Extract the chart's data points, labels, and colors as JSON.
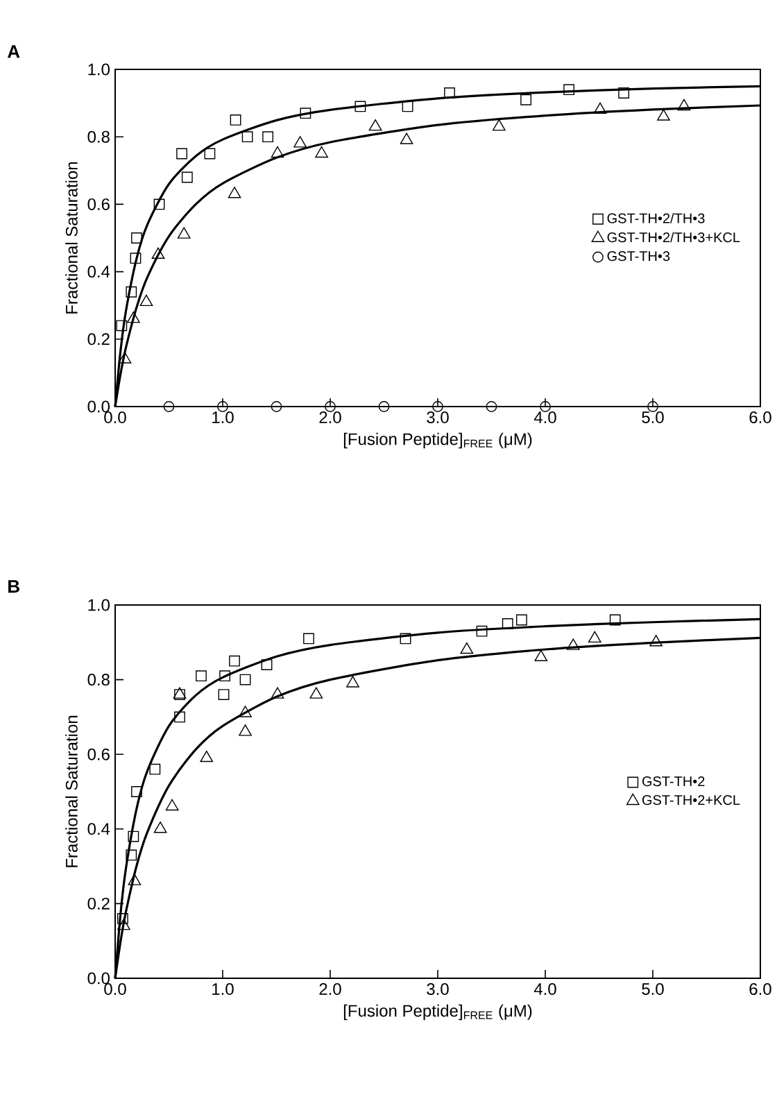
{
  "chart_data": [
    {
      "type": "scatter",
      "annotations": [
        "A"
      ],
      "xlabel": "[Fusion Peptide]$_{FREE}$ (μM)",
      "ylabel": "Fractional Saturation",
      "xlim": [
        0,
        6
      ],
      "ylim": [
        0,
        1
      ],
      "xticks": [
        {
          "value": 0,
          "label": "0.0"
        },
        {
          "value": 1,
          "label": "1.0"
        },
        {
          "value": 2,
          "label": "2.0"
        },
        {
          "value": 3,
          "label": "3.0"
        },
        {
          "value": 4,
          "label": "4.0"
        },
        {
          "value": 5,
          "label": "5.0"
        },
        {
          "value": 6,
          "label": "6.0"
        }
      ],
      "yticks": [
        {
          "value": 0,
          "label": "0.0"
        },
        {
          "value": 0.2,
          "label": "0.2"
        },
        {
          "value": 0.4,
          "label": "0.4"
        },
        {
          "value": 0.6,
          "label": "0.6"
        },
        {
          "value": 0.8,
          "label": "0.8"
        },
        {
          "value": 1,
          "label": "1.0"
        }
      ],
      "legend": "right",
      "series": [
        {
          "name": "GST-TH•2/TH•3",
          "marker": "square",
          "color": "#000000",
          "x": [
            0.06,
            0.15,
            0.19,
            0.2,
            0.41,
            0.67,
            0.62,
            0.88,
            1.12,
            1.23,
            1.42,
            1.77,
            2.28,
            2.72,
            3.11,
            3.82,
            4.22,
            4.73
          ],
          "values": [
            0.24,
            0.34,
            0.44,
            0.5,
            0.6,
            0.68,
            0.75,
            0.75,
            0.85,
            0.8,
            0.8,
            0.87,
            0.89,
            0.89,
            0.93,
            0.91,
            0.94,
            0.93
          ]
        },
        {
          "name": "GST-TH•2/TH•3+KCL",
          "marker": "triangle",
          "color": "#000000",
          "x": [
            0.09,
            0.17,
            0.29,
            0.4,
            0.64,
            1.11,
            1.51,
            1.72,
            1.92,
            2.42,
            2.71,
            3.57,
            4.51,
            5.1,
            5.29
          ],
          "values": [
            0.14,
            0.26,
            0.31,
            0.45,
            0.51,
            0.63,
            0.75,
            0.78,
            0.75,
            0.83,
            0.79,
            0.83,
            0.88,
            0.86,
            0.89
          ]
        },
        {
          "name": "GST-TH•3",
          "marker": "circle",
          "color": "#000000",
          "x": [
            0.5,
            1.0,
            1.5,
            2.0,
            2.5,
            3.0,
            3.5,
            4.0,
            5.0
          ],
          "values": [
            0,
            0,
            0,
            0,
            0,
            0,
            0,
            0,
            0
          ]
        },
        {
          "type": "line",
          "marker": "none",
          "color": "#000000",
          "x": [
            0,
            0.05,
            0.1,
            0.2,
            0.3,
            0.5,
            0.75,
            1,
            1.5,
            2,
            3,
            4,
            5,
            6
          ],
          "values": [
            0,
            0.165,
            0.283,
            0.44,
            0.54,
            0.66,
            0.743,
            0.792,
            0.849,
            0.88,
            0.914,
            0.932,
            0.943,
            0.95
          ]
        },
        {
          "type": "line",
          "marker": "none",
          "color": "#000000",
          "x": [
            0,
            0.05,
            0.1,
            0.2,
            0.3,
            0.5,
            0.75,
            1,
            1.5,
            2,
            3,
            4,
            5,
            6
          ],
          "values": [
            0,
            0.096,
            0.175,
            0.295,
            0.384,
            0.505,
            0.6,
            0.662,
            0.738,
            0.784,
            0.835,
            0.863,
            0.881,
            0.893
          ]
        }
      ]
    },
    {
      "type": "scatter",
      "annotations": [
        "B"
      ],
      "xlabel": "[Fusion Peptide]$_{FREE}$ (μM)",
      "ylabel": "Fractional Saturation",
      "xlim": [
        0,
        6
      ],
      "ylim": [
        0,
        1
      ],
      "xticks": [
        {
          "value": 0,
          "label": "0.0"
        },
        {
          "value": 1,
          "label": "1.0"
        },
        {
          "value": 2,
          "label": "2.0"
        },
        {
          "value": 3,
          "label": "3.0"
        },
        {
          "value": 4,
          "label": "4.0"
        },
        {
          "value": 5,
          "label": "5.0"
        },
        {
          "value": 6,
          "label": "6.0"
        }
      ],
      "yticks": [
        {
          "value": 0,
          "label": "0.0"
        },
        {
          "value": 0.2,
          "label": "0.2"
        },
        {
          "value": 0.4,
          "label": "0.4"
        },
        {
          "value": 0.6,
          "label": "0.6"
        },
        {
          "value": 0.8,
          "label": "0.8"
        },
        {
          "value": 1,
          "label": "1.0"
        }
      ],
      "legend": "right",
      "series": [
        {
          "name": "GST-TH•2",
          "marker": "square",
          "color": "#000000",
          "x": [
            0.07,
            0.15,
            0.17,
            0.2,
            0.37,
            0.6,
            0.6,
            0.8,
            1.01,
            1.02,
            1.11,
            1.21,
            1.41,
            1.8,
            2.7,
            3.41,
            3.65,
            3.78,
            4.65
          ],
          "values": [
            0.16,
            0.33,
            0.38,
            0.5,
            0.56,
            0.7,
            0.76,
            0.81,
            0.76,
            0.81,
            0.85,
            0.8,
            0.84,
            0.91,
            0.91,
            0.93,
            0.95,
            0.96,
            0.96
          ]
        },
        {
          "name": "GST-TH•2+KCL",
          "marker": "triangle",
          "color": "#000000",
          "x": [
            0.08,
            0.18,
            0.42,
            0.53,
            0.6,
            0.85,
            1.21,
            1.21,
            1.51,
            1.87,
            2.21,
            3.27,
            3.96,
            4.26,
            4.46,
            5.03
          ],
          "values": [
            0.14,
            0.26,
            0.4,
            0.46,
            0.76,
            0.59,
            0.71,
            0.66,
            0.76,
            0.76,
            0.79,
            0.88,
            0.86,
            0.89,
            0.91,
            0.9
          ]
        },
        {
          "type": "line",
          "marker": "none",
          "color": "#000000",
          "x": [
            0,
            0.05,
            0.1,
            0.2,
            0.3,
            0.5,
            0.75,
            1,
            1.5,
            2,
            3,
            4,
            5,
            6
          ],
          "values": [
            0,
            0.172,
            0.294,
            0.455,
            0.556,
            0.676,
            0.758,
            0.806,
            0.862,
            0.893,
            0.926,
            0.943,
            0.954,
            0.962
          ]
        },
        {
          "type": "line",
          "marker": "none",
          "color": "#000000",
          "x": [
            0,
            0.05,
            0.1,
            0.2,
            0.3,
            0.5,
            0.75,
            1,
            1.5,
            2,
            3,
            4,
            5,
            6
          ],
          "values": [
            0,
            0.098,
            0.178,
            0.302,
            0.392,
            0.516,
            0.613,
            0.676,
            0.754,
            0.8,
            0.852,
            0.881,
            0.899,
            0.912
          ]
        }
      ]
    }
  ]
}
